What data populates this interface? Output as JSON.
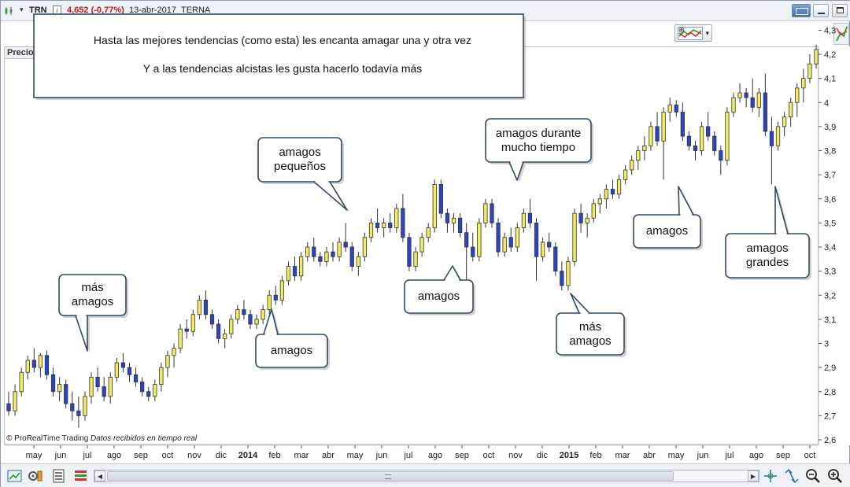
{
  "topbar": {
    "symbol": "TRN",
    "change": "4,652 (-0,77%)",
    "date": "13-abr-2017",
    "name": "TERNA",
    "info_glyph": "i",
    "dropdown_glyph": "▾"
  },
  "panel": {
    "tab_label": "Precio"
  },
  "copyright": {
    "brand": "© ProRealTime Trading",
    "status": "Datos recibidos en tiempo real"
  },
  "notes": {
    "line1": "Hasta las mejores tendencias (como esta) les encanta amagar una y otra vez",
    "line2": "Y a las tendencias alcistas les gusta hacerlo todavía más"
  },
  "callouts": [
    {
      "lines": [
        "más",
        "amagos"
      ]
    },
    {
      "lines": [
        "amagos"
      ]
    },
    {
      "lines": [
        "amagos",
        "pequeños"
      ]
    },
    {
      "lines": [
        "amagos"
      ]
    },
    {
      "lines": [
        "amagos durante",
        "mucho tiempo"
      ]
    },
    {
      "lines": [
        "más",
        "amagos"
      ]
    },
    {
      "lines": [
        "amagos"
      ]
    },
    {
      "lines": [
        "amagos",
        "grandes"
      ]
    }
  ],
  "colors": {
    "up_candle": "#f2ec61",
    "down_candle": "#2b44c0",
    "wick": "#333333",
    "callout_border": "#2f4a6b"
  },
  "icons": {
    "symbol": "candlestick-icon",
    "keyboard": "keyboard-icon",
    "minimize": "minimize-icon",
    "maximize": "maximize-icon",
    "close": "close-icon",
    "indicator": "indicator-icon",
    "side_tool": "trend-icon",
    "bottom": [
      "chart-zoom-icon",
      "settings-icon",
      "list-icon",
      "bars-icon",
      "crosshair-icon",
      "fit-icon",
      "zoom-out-icon",
      "zoom-in-icon"
    ]
  },
  "chart_data": {
    "type": "candlestick",
    "y_ticks": [
      "2,6",
      "2,7",
      "2,8",
      "2,9",
      "3",
      "3,1",
      "3,2",
      "3,3",
      "3,4",
      "3,5",
      "3,6",
      "3,7",
      "3,8",
      "3,9",
      "4",
      "4,1",
      "4,2",
      "4,3"
    ],
    "ylim": [
      2.6,
      4.3
    ],
    "x_labels": [
      "may",
      "jun",
      "jul",
      "ago",
      "sep",
      "oct",
      "nov",
      "dic",
      "2014",
      "feb",
      "mar",
      "abr",
      "may",
      "jun",
      "jul",
      "ago",
      "sep",
      "oct",
      "nov",
      "dic",
      "2015",
      "feb",
      "mar",
      "abr",
      "may",
      "jun",
      "jul",
      "ago",
      "sep",
      "oct"
    ],
    "x_label_bold": [
      "2014",
      "2015"
    ],
    "grid": false,
    "ohlc": [
      [
        2.75,
        2.8,
        2.7,
        2.72
      ],
      [
        2.72,
        2.83,
        2.7,
        2.8
      ],
      [
        2.8,
        2.9,
        2.78,
        2.88
      ],
      [
        2.88,
        2.95,
        2.85,
        2.93
      ],
      [
        2.93,
        2.98,
        2.88,
        2.9
      ],
      [
        2.9,
        2.96,
        2.86,
        2.95
      ],
      [
        2.95,
        2.97,
        2.85,
        2.87
      ],
      [
        2.87,
        2.9,
        2.78,
        2.8
      ],
      [
        2.8,
        2.86,
        2.76,
        2.83
      ],
      [
        2.83,
        2.85,
        2.73,
        2.75
      ],
      [
        2.75,
        2.8,
        2.68,
        2.72
      ],
      [
        2.72,
        2.78,
        2.65,
        2.7
      ],
      [
        2.7,
        2.8,
        2.68,
        2.78
      ],
      [
        2.78,
        2.88,
        2.75,
        2.86
      ],
      [
        2.86,
        2.9,
        2.8,
        2.82
      ],
      [
        2.82,
        2.86,
        2.76,
        2.78
      ],
      [
        2.78,
        2.88,
        2.75,
        2.86
      ],
      [
        2.86,
        2.94,
        2.84,
        2.92
      ],
      [
        2.92,
        2.96,
        2.88,
        2.9
      ],
      [
        2.9,
        2.92,
        2.84,
        2.87
      ],
      [
        2.87,
        2.9,
        2.82,
        2.84
      ],
      [
        2.84,
        2.86,
        2.78,
        2.8
      ],
      [
        2.8,
        2.82,
        2.76,
        2.78
      ],
      [
        2.78,
        2.85,
        2.76,
        2.83
      ],
      [
        2.83,
        2.92,
        2.8,
        2.9
      ],
      [
        2.9,
        2.97,
        2.86,
        2.95
      ],
      [
        2.95,
        3.0,
        2.9,
        2.98
      ],
      [
        2.98,
        3.08,
        2.96,
        3.06
      ],
      [
        3.06,
        3.1,
        3.02,
        3.05
      ],
      [
        3.05,
        3.14,
        3.03,
        3.12
      ],
      [
        3.12,
        3.2,
        3.1,
        3.18
      ],
      [
        3.18,
        3.22,
        3.1,
        3.12
      ],
      [
        3.12,
        3.14,
        3.06,
        3.08
      ],
      [
        3.08,
        3.1,
        3.0,
        3.02
      ],
      [
        3.02,
        3.06,
        2.98,
        3.04
      ],
      [
        3.04,
        3.12,
        3.02,
        3.1
      ],
      [
        3.1,
        3.16,
        3.08,
        3.14
      ],
      [
        3.14,
        3.18,
        3.1,
        3.12
      ],
      [
        3.12,
        3.14,
        3.06,
        3.08
      ],
      [
        3.08,
        3.12,
        3.06,
        3.1
      ],
      [
        3.1,
        3.16,
        3.08,
        3.14
      ],
      [
        3.14,
        3.22,
        3.12,
        3.2
      ],
      [
        3.2,
        3.24,
        3.16,
        3.18
      ],
      [
        3.18,
        3.28,
        3.16,
        3.26
      ],
      [
        3.26,
        3.34,
        3.24,
        3.32
      ],
      [
        3.32,
        3.36,
        3.26,
        3.28
      ],
      [
        3.28,
        3.38,
        3.26,
        3.36
      ],
      [
        3.36,
        3.42,
        3.34,
        3.4
      ],
      [
        3.4,
        3.44,
        3.34,
        3.36
      ],
      [
        3.36,
        3.38,
        3.32,
        3.34
      ],
      [
        3.34,
        3.4,
        3.32,
        3.38
      ],
      [
        3.38,
        3.42,
        3.34,
        3.36
      ],
      [
        3.36,
        3.44,
        3.34,
        3.42
      ],
      [
        3.42,
        3.5,
        3.38,
        3.4
      ],
      [
        3.4,
        3.42,
        3.3,
        3.32
      ],
      [
        3.32,
        3.38,
        3.28,
        3.36
      ],
      [
        3.36,
        3.46,
        3.34,
        3.44
      ],
      [
        3.44,
        3.52,
        3.42,
        3.5
      ],
      [
        3.5,
        3.56,
        3.46,
        3.48
      ],
      [
        3.48,
        3.52,
        3.44,
        3.5
      ],
      [
        3.5,
        3.54,
        3.46,
        3.48
      ],
      [
        3.48,
        3.58,
        3.46,
        3.56
      ],
      [
        3.56,
        3.62,
        3.42,
        3.44
      ],
      [
        3.44,
        3.46,
        3.3,
        3.32
      ],
      [
        3.32,
        3.4,
        3.3,
        3.38
      ],
      [
        3.38,
        3.46,
        3.36,
        3.44
      ],
      [
        3.44,
        3.5,
        3.42,
        3.48
      ],
      [
        3.48,
        3.68,
        3.46,
        3.66
      ],
      [
        3.66,
        3.68,
        3.52,
        3.54
      ],
      [
        3.54,
        3.56,
        3.46,
        3.5
      ],
      [
        3.5,
        3.54,
        3.46,
        3.52
      ],
      [
        3.52,
        3.54,
        3.44,
        3.46
      ],
      [
        3.46,
        3.5,
        3.2,
        3.4
      ],
      [
        3.4,
        3.46,
        3.34,
        3.36
      ],
      [
        3.36,
        3.52,
        3.34,
        3.5
      ],
      [
        3.5,
        3.6,
        3.48,
        3.58
      ],
      [
        3.58,
        3.6,
        3.48,
        3.5
      ],
      [
        3.5,
        3.52,
        3.36,
        3.38
      ],
      [
        3.38,
        3.46,
        3.36,
        3.44
      ],
      [
        3.44,
        3.48,
        3.38,
        3.4
      ],
      [
        3.4,
        3.5,
        3.38,
        3.48
      ],
      [
        3.48,
        3.56,
        3.46,
        3.54
      ],
      [
        3.54,
        3.6,
        3.48,
        3.5
      ],
      [
        3.5,
        3.52,
        3.26,
        3.36
      ],
      [
        3.36,
        3.44,
        3.34,
        3.42
      ],
      [
        3.42,
        3.46,
        3.38,
        3.4
      ],
      [
        3.4,
        3.42,
        3.28,
        3.3
      ],
      [
        3.3,
        3.34,
        3.22,
        3.24
      ],
      [
        3.24,
        3.36,
        3.22,
        3.34
      ],
      [
        3.34,
        3.56,
        3.32,
        3.54
      ],
      [
        3.54,
        3.58,
        3.46,
        3.5
      ],
      [
        3.5,
        3.54,
        3.44,
        3.52
      ],
      [
        3.52,
        3.6,
        3.5,
        3.58
      ],
      [
        3.58,
        3.62,
        3.54,
        3.6
      ],
      [
        3.6,
        3.66,
        3.56,
        3.64
      ],
      [
        3.64,
        3.68,
        3.6,
        3.62
      ],
      [
        3.62,
        3.7,
        3.6,
        3.68
      ],
      [
        3.68,
        3.74,
        3.66,
        3.72
      ],
      [
        3.72,
        3.78,
        3.7,
        3.76
      ],
      [
        3.76,
        3.82,
        3.72,
        3.8
      ],
      [
        3.8,
        3.86,
        3.76,
        3.82
      ],
      [
        3.82,
        3.92,
        3.8,
        3.9
      ],
      [
        3.9,
        3.96,
        3.82,
        3.84
      ],
      [
        3.84,
        3.98,
        3.68,
        3.96
      ],
      [
        3.96,
        4.02,
        3.92,
        3.99
      ],
      [
        3.99,
        4.01,
        3.94,
        3.96
      ],
      [
        3.96,
        4.0,
        3.84,
        3.86
      ],
      [
        3.86,
        3.88,
        3.8,
        3.82
      ],
      [
        3.82,
        3.84,
        3.76,
        3.8
      ],
      [
        3.8,
        3.92,
        3.78,
        3.9
      ],
      [
        3.9,
        3.96,
        3.84,
        3.86
      ],
      [
        3.86,
        3.88,
        3.78,
        3.8
      ],
      [
        3.8,
        3.82,
        3.7,
        3.76
      ],
      [
        3.76,
        3.98,
        3.74,
        3.96
      ],
      [
        3.96,
        4.04,
        3.94,
        4.02
      ],
      [
        4.02,
        4.08,
        4.0,
        4.04
      ],
      [
        4.04,
        4.06,
        3.98,
        4.02
      ],
      [
        4.02,
        4.1,
        3.96,
        3.98
      ],
      [
        3.98,
        4.06,
        3.94,
        4.04
      ],
      [
        4.04,
        4.12,
        3.86,
        3.88
      ],
      [
        3.88,
        3.94,
        3.66,
        3.82
      ],
      [
        3.82,
        3.92,
        3.8,
        3.9
      ],
      [
        3.9,
        3.96,
        3.86,
        3.94
      ],
      [
        3.94,
        4.02,
        3.9,
        4.0
      ],
      [
        4.0,
        4.08,
        3.94,
        4.06
      ],
      [
        4.06,
        4.14,
        4.0,
        4.1
      ],
      [
        4.1,
        4.2,
        4.08,
        4.16
      ],
      [
        4.16,
        4.24,
        4.14,
        4.22
      ]
    ]
  }
}
